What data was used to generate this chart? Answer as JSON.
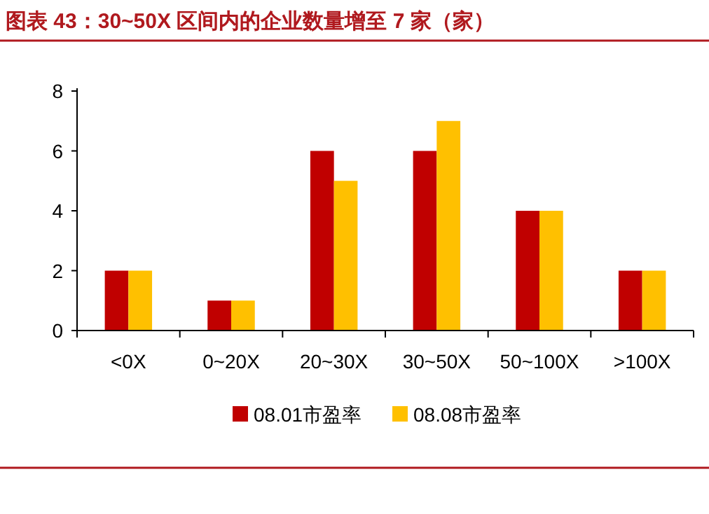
{
  "chart_data": {
    "type": "bar",
    "title": "图表 43：30~50X 区间内的企业数量增至 7 家（家）",
    "categories": [
      "<0X",
      "0~20X",
      "20~30X",
      "30~50X",
      "50~100X",
      ">100X"
    ],
    "series": [
      {
        "name": "08.01市盈率",
        "color": "#c00000",
        "values": [
          2,
          1,
          6,
          6,
          4,
          2
        ]
      },
      {
        "name": "08.08市盈率",
        "color": "#ffc000",
        "values": [
          2,
          1,
          5,
          7,
          4,
          2
        ]
      }
    ],
    "ylim": [
      0,
      8
    ],
    "yticks": [
      0,
      2,
      4,
      6,
      8
    ],
    "legend": "bottom"
  }
}
